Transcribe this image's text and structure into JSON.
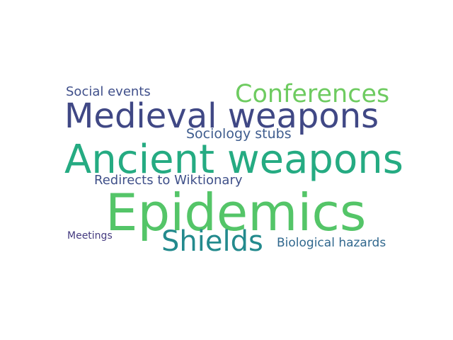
{
  "words": [
    {
      "text": "Social events",
      "color": "#3f4f8a"
    },
    {
      "text": "Conferences",
      "color": "#6ecb60"
    },
    {
      "text": "Medieval weapons",
      "color": "#404885"
    },
    {
      "text": "Sociology stubs",
      "color": "#3e5c8e"
    },
    {
      "text": "Ancient weapons",
      "color": "#25ab82"
    },
    {
      "text": "Redirects to Wiktionary",
      "color": "#3f5089"
    },
    {
      "text": "Epidemics",
      "color": "#54c568"
    },
    {
      "text": "Meetings",
      "color": "#453b80"
    },
    {
      "text": "Shields",
      "color": "#238a8d"
    },
    {
      "text": "Biological hazards",
      "color": "#31688e"
    }
  ]
}
